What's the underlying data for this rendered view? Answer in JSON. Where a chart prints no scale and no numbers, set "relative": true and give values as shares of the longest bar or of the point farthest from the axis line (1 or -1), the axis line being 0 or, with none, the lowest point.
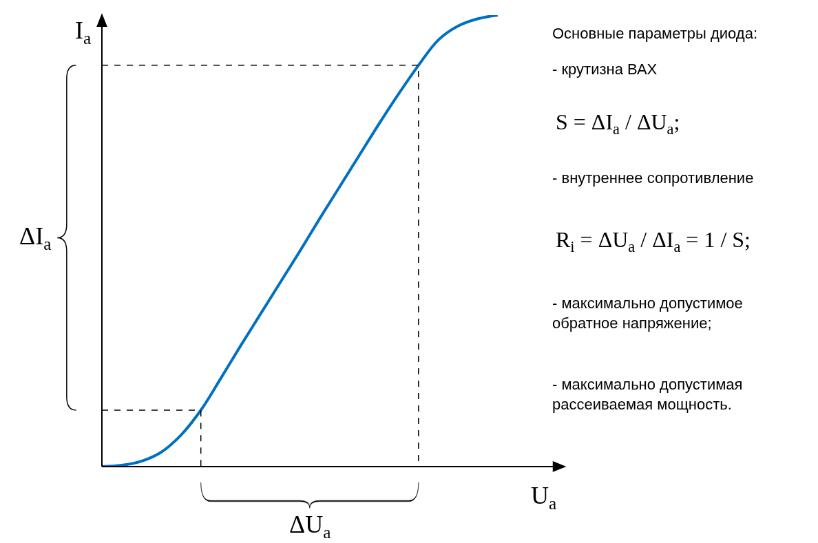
{
  "chart_data": {
    "type": "line",
    "relative": true,
    "xlabel": "U$_{а}$",
    "ylabel": "I$_{а}$",
    "categories": [
      null,
      null,
      null,
      null,
      null,
      null,
      null,
      null,
      null,
      null,
      null,
      null,
      null,
      null,
      null,
      null,
      null,
      null,
      null,
      null,
      null
    ],
    "series": [
      {
        "color": "#0070c0",
        "values": [
          0,
          0.003,
          0.012,
          0.032,
          0.07,
          0.125,
          0.195,
          0.267,
          0.337,
          0.407,
          0.477,
          0.549,
          0.619,
          0.689,
          0.759,
          0.826,
          0.889,
          0.945,
          0.976,
          0.992,
          1
        ]
      }
    ],
    "ref_lines": [
      {
        "axis": "y",
        "value": 0.125,
        "color": "#000000",
        "line_style": "dashed"
      },
      {
        "axis": "y",
        "value": 0.889,
        "color": "#000000",
        "line_style": "dashed"
      }
    ],
    "marker": "none",
    "line_style": "solid",
    "annotations": [
      "ΔI$_{а}$",
      "ΔU$_{а}$",
      "Основные параметры диода:",
      "- крутизна ВАХ",
      "S = ΔI$_{а}$ / ΔU$_{а}$;",
      "- внутреннее сопротивление",
      "R$_{i}$ = ΔU$_{а}$ / ΔI$_{а}$ = 1 / S;",
      "- максимально допустимое\nобратное напряжение;",
      "- максимально допустимая\nрассеиваемая мощность."
    ]
  }
}
